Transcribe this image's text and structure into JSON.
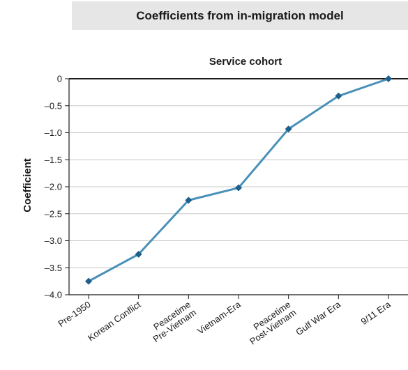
{
  "page_title": "Coefficients from in-migration model",
  "chart_data": {
    "type": "line",
    "title": "Service cohort",
    "xlabel": "",
    "ylabel": "Coefficient",
    "categories": [
      "Pre-1950",
      "Korean Conflict",
      "Peacetime Pre-Vietnam",
      "Vietnam-Era",
      "Peacetime Post-Vietnam",
      "Gulf War Era",
      "9/11 Era"
    ],
    "category_lines": [
      [
        "Pre-1950"
      ],
      [
        "Korean Conflict"
      ],
      [
        "Peacetime",
        "Pre-Vietnam"
      ],
      [
        "Vietnam-Era"
      ],
      [
        "Peacetime",
        "Post-Vietnam"
      ],
      [
        "Gulf War Era"
      ],
      [
        "9/11 Era"
      ]
    ],
    "series": [
      {
        "values": [
          -3.75,
          -3.25,
          -2.25,
          -2.02,
          -0.93,
          -0.32,
          0.0
        ]
      }
    ],
    "ylim": [
      -4.0,
      0
    ],
    "yticks": [
      0,
      -0.5,
      -1.0,
      -1.5,
      -2.0,
      -2.5,
      -3.0,
      -3.5,
      -4.0
    ],
    "ytick_labels": [
      "0",
      "–0.5",
      "–1.0",
      "–1.5",
      "–2.0",
      "–2.5",
      "–3.0",
      "–3.5",
      "–4.0"
    ],
    "grid": true,
    "colors": {
      "line": "#4a90b8",
      "marker": "#1f5f8b",
      "grid": "#c8c8c8",
      "axis": "#1a1a1a",
      "title_bg": "#e6e6e6"
    }
  }
}
